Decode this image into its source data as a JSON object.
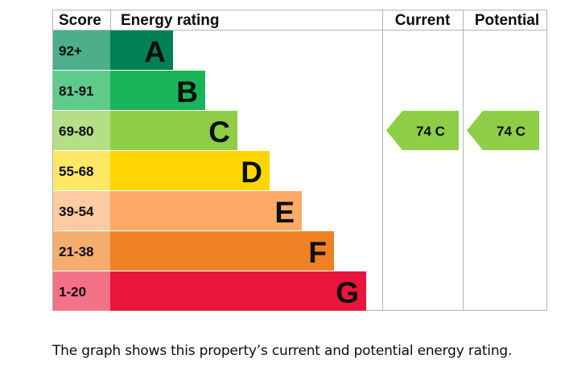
{
  "chart_data": {
    "type": "bar",
    "header": {
      "score": "Score",
      "rating": "Energy rating",
      "current": "Current",
      "potential": "Potential"
    },
    "bands": [
      {
        "letter": "A",
        "score": "92+",
        "width": 1,
        "color": "#008054",
        "score_color": "#4dae8a"
      },
      {
        "letter": "B",
        "score": "81-91",
        "width": 2,
        "color": "#19b459",
        "score_color": "#5ecb8b"
      },
      {
        "letter": "C",
        "score": "69-80",
        "width": 3,
        "color": "#8dce46",
        "score_color": "#b4df86"
      },
      {
        "letter": "D",
        "score": "55-68",
        "width": 4,
        "color": "#ffd500",
        "score_color": "#ffe766"
      },
      {
        "letter": "E",
        "score": "39-54",
        "width": 5,
        "color": "#fcaa65",
        "score_color": "#fdcba1"
      },
      {
        "letter": "F",
        "score": "21-38",
        "width": 6,
        "color": "#ef8023",
        "score_color": "#f5ad6f"
      },
      {
        "letter": "G",
        "score": "1-20",
        "width": 7,
        "color": "#e9153b",
        "score_color": "#f27287"
      }
    ],
    "current": {
      "value": 74,
      "band": "C",
      "label": "74  C"
    },
    "potential": {
      "value": 74,
      "band": "C",
      "label": "74  C"
    }
  },
  "caption": "The graph shows this property’s current and potential energy rating."
}
